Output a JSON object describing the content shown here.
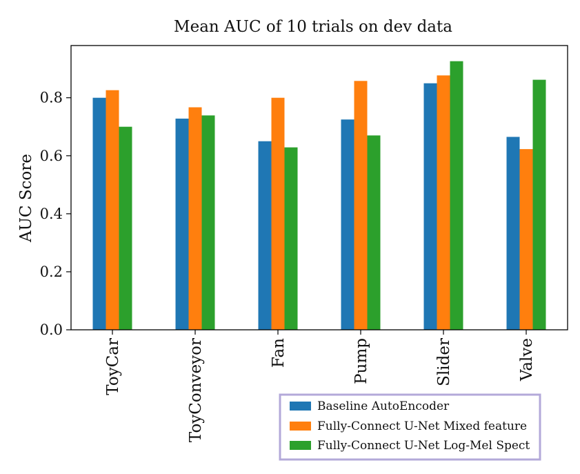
{
  "colors": {
    "baseline": "#1f77b4",
    "mixed": "#ff7f0e",
    "logmel": "#2ca02c",
    "legend_border": "#b3a9d9",
    "axis": "#000000"
  },
  "chart_data": {
    "type": "bar",
    "title": "Mean AUC of 10 trials on dev data",
    "xlabel": "",
    "ylabel": "AUC Score",
    "ylim": [
      0,
      0.98
    ],
    "yticks": [
      "0.0",
      "0.2",
      "0.4",
      "0.6",
      "0.8"
    ],
    "categories": [
      "ToyCar",
      "ToyConveyor",
      "Fan",
      "Pump",
      "Slider",
      "Valve"
    ],
    "series": [
      {
        "name": "Baseline AutoEncoder",
        "color_key": "baseline",
        "values": [
          0.8,
          0.728,
          0.65,
          0.725,
          0.85,
          0.665
        ]
      },
      {
        "name": "Fully-Connect U-Net Mixed feature",
        "color_key": "mixed",
        "values": [
          0.826,
          0.767,
          0.8,
          0.858,
          0.877,
          0.623
        ]
      },
      {
        "name": "Fully-Connect U-Net Log-Mel Spect",
        "color_key": "logmel",
        "values": [
          0.7,
          0.739,
          0.629,
          0.67,
          0.926,
          0.862
        ]
      }
    ],
    "grid": false,
    "legend_position": "bottom-right"
  }
}
